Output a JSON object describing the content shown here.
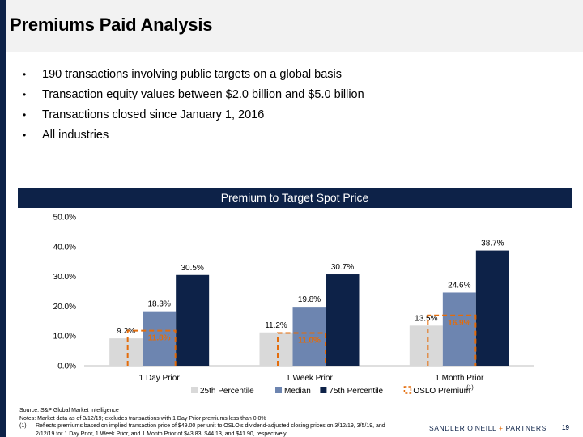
{
  "page": {
    "title": "Premiums Paid Analysis",
    "bullets": [
      "190 transactions involving public targets on a global basis",
      "Transaction equity values between $2.0 billion and $5.0 billion",
      "Transactions closed since January 1, 2016",
      "All industries"
    ],
    "bullet_glyph": "•",
    "banner": "Premium to Target Spot Price",
    "source": "Source: S&P Global Market Intelligence",
    "notes": "Notes: Market data as of 3/12/19; excludes transactions with 1 Day Prior premiums less than 0.0%",
    "footnote_mark": "(1)",
    "footnote_line1": "Reflects premiums based on implied transaction price of $49.00 per unit to OSLO's dividend-adjusted closing prices on 3/12/19, 3/5/19, and",
    "footnote_line2": "2/12/19 for 1 Day Prior, 1 Week Prior, and 1 Month Prior of $43.83, $44.13, and $41.90, respectively",
    "brand_left": "SANDLER O'NEILL",
    "brand_plus": "+",
    "brand_right": "PARTNERS",
    "page_number": "19",
    "colors": {
      "navy": "#0d2248",
      "p25": "#d9d9d9",
      "median": "#6d85b0",
      "p75": "#0d2248",
      "oslo": "#e46c0a"
    }
  },
  "chart_data": {
    "type": "bar",
    "title": "Premium to Target Spot Price",
    "categories": [
      "1 Day Prior",
      "1 Week Prior",
      "1 Month Prior"
    ],
    "series": [
      {
        "name": "25th Percentile",
        "values": [
          9.2,
          11.2,
          13.5
        ],
        "labels": [
          "9.2%",
          "11.2%",
          "13.5%"
        ],
        "color": "#d9d9d9"
      },
      {
        "name": "Median",
        "values": [
          18.3,
          19.8,
          24.6
        ],
        "labels": [
          "18.3%",
          "19.8%",
          "24.6%"
        ],
        "color": "#6d85b0"
      },
      {
        "name": "75th Percentile",
        "values": [
          30.5,
          30.7,
          38.7
        ],
        "labels": [
          "30.5%",
          "30.7%",
          "38.7%"
        ],
        "color": "#0d2248"
      }
    ],
    "overlay": {
      "name": "OSLO Premium",
      "superscript": "(1)",
      "values": [
        11.8,
        11.0,
        16.9
      ],
      "labels": [
        "11.8%",
        "11.0%",
        "16.9%"
      ],
      "style": "dashed outline",
      "color": "#e46c0a"
    },
    "ylim": [
      0,
      50
    ],
    "yticks": [
      0,
      10,
      20,
      30,
      40,
      50
    ],
    "ytick_labels": [
      "0.0%",
      "10.0%",
      "20.0%",
      "30.0%",
      "40.0%",
      "50.0%"
    ],
    "legend_position": "bottom",
    "grid": false
  }
}
